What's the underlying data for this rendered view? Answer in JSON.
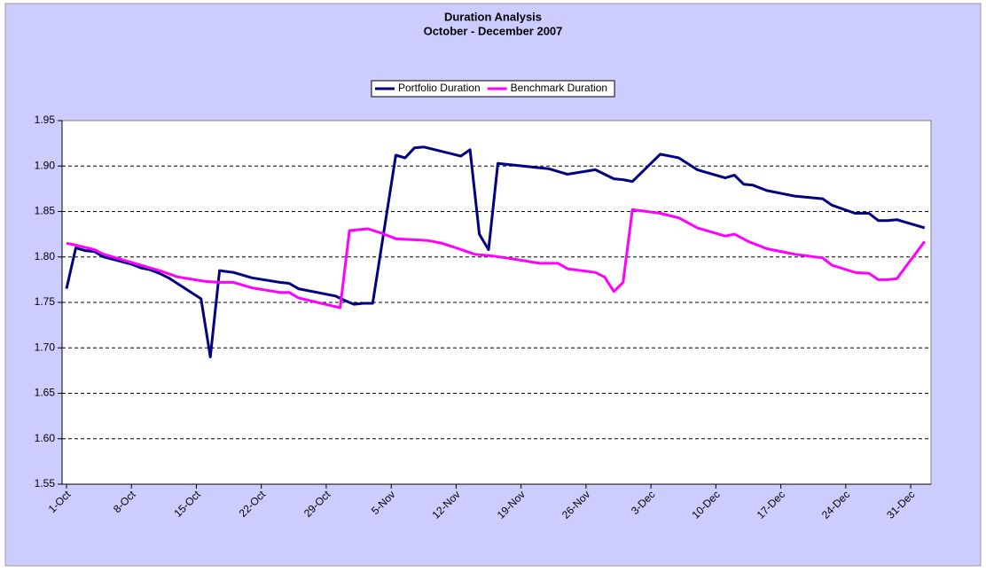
{
  "chart_data": {
    "type": "line",
    "title": "Duration Analysis",
    "subtitle": "October - December 2007",
    "legend": "top",
    "grid": true,
    "xlim": [
      0,
      93
    ],
    "xticks": [
      {
        "value": 0,
        "label": "1-Oct"
      },
      {
        "value": 7,
        "label": "8-Oct"
      },
      {
        "value": 14,
        "label": "15-Oct"
      },
      {
        "value": 21,
        "label": "22-Oct"
      },
      {
        "value": 28,
        "label": "29-Oct"
      },
      {
        "value": 35,
        "label": "5-Nov"
      },
      {
        "value": 42,
        "label": "12-Nov"
      },
      {
        "value": 49,
        "label": "19-Nov"
      },
      {
        "value": 56,
        "label": "26-Nov"
      },
      {
        "value": 63,
        "label": "3-Dec"
      },
      {
        "value": 70,
        "label": "10-Dec"
      },
      {
        "value": 77,
        "label": "17-Dec"
      },
      {
        "value": 84,
        "label": "24-Dec"
      },
      {
        "value": 91,
        "label": "31-Dec"
      }
    ],
    "ylim": [
      1.55,
      1.95
    ],
    "yticks": [
      {
        "value": 1.55,
        "label": "1.55"
      },
      {
        "value": 1.6,
        "label": "1.60"
      },
      {
        "value": 1.65,
        "label": "1.65"
      },
      {
        "value": 1.7,
        "label": "1.70"
      },
      {
        "value": 1.75,
        "label": "1.75"
      },
      {
        "value": 1.8,
        "label": "1.80"
      },
      {
        "value": 1.85,
        "label": "1.85"
      },
      {
        "value": 1.9,
        "label": "1.90"
      },
      {
        "value": 1.95,
        "label": "1.95"
      }
    ],
    "series": [
      {
        "name": "Portfolio Duration",
        "color": "#000080",
        "x": [
          0,
          1,
          2,
          3,
          4,
          7,
          8,
          9,
          10,
          11,
          14.5,
          15.5,
          16.5,
          18,
          20,
          23,
          24,
          25,
          29,
          30,
          31,
          32,
          33,
          35.5,
          36.5,
          37.5,
          38.5,
          42.5,
          43.5,
          44.5,
          45.5,
          46.5,
          51,
          52,
          54,
          57,
          59,
          60,
          61,
          64,
          66,
          68,
          71,
          72,
          73,
          74,
          75.5,
          78.5,
          81.5,
          82.5,
          85,
          86.5,
          87.5,
          88.5,
          89.5,
          92.5
        ],
        "values": [
          1.765,
          1.81,
          1.807,
          1.806,
          1.8,
          1.792,
          1.788,
          1.786,
          1.782,
          1.777,
          1.754,
          1.69,
          1.785,
          1.783,
          1.777,
          1.772,
          1.771,
          1.765,
          1.757,
          1.752,
          1.748,
          1.749,
          1.749,
          1.912,
          1.909,
          1.92,
          1.921,
          1.911,
          1.918,
          1.825,
          1.808,
          1.903,
          1.898,
          1.897,
          1.891,
          1.896,
          1.886,
          1.885,
          1.883,
          1.913,
          1.909,
          1.896,
          1.887,
          1.89,
          1.88,
          1.879,
          1.873,
          1.867,
          1.864,
          1.857,
          1.848,
          1.848,
          1.84,
          1.84,
          1.841,
          1.832
        ]
      },
      {
        "name": "Benchmark Duration",
        "color": "#ff00ff",
        "x": [
          0,
          1,
          3,
          4,
          6,
          8,
          10,
          12,
          15,
          16.5,
          18,
          20,
          23,
          24,
          25,
          29.5,
          30.5,
          32.5,
          34,
          35.5,
          39,
          40.5,
          42,
          44,
          46,
          48,
          51,
          53,
          54,
          57,
          58,
          59,
          60,
          61,
          64,
          66,
          68,
          71,
          72,
          73.5,
          75.5,
          78.5,
          81.5,
          82.5,
          85,
          86.5,
          87.5,
          88.5,
          89.5,
          92.5
        ],
        "values": [
          1.815,
          1.813,
          1.808,
          1.803,
          1.797,
          1.791,
          1.785,
          1.778,
          1.773,
          1.772,
          1.772,
          1.766,
          1.761,
          1.761,
          1.755,
          1.744,
          1.829,
          1.831,
          1.826,
          1.82,
          1.818,
          1.815,
          1.81,
          1.803,
          1.801,
          1.798,
          1.793,
          1.793,
          1.787,
          1.783,
          1.778,
          1.762,
          1.772,
          1.852,
          1.848,
          1.843,
          1.832,
          1.823,
          1.825,
          1.817,
          1.809,
          1.803,
          1.799,
          1.791,
          1.783,
          1.782,
          1.775,
          1.775,
          1.776,
          1.817
        ]
      }
    ]
  }
}
